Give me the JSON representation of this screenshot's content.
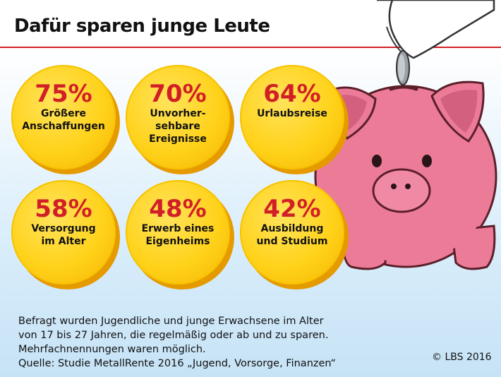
{
  "header": {
    "title": "Dafür sparen junge Leute"
  },
  "chart_data": {
    "type": "other",
    "categories": [
      "Größere Anschaffungen",
      "Unvorhersehbare Ereignisse",
      "Urlaubsreise",
      "Versorgung im Alter",
      "Erwerb eines Eigenheims",
      "Ausbildung und Studium"
    ],
    "values": [
      75,
      70,
      64,
      58,
      48,
      42
    ],
    "unit": "%"
  },
  "coins": [
    {
      "value": "75%",
      "label": "Größere\nAnschaffungen"
    },
    {
      "value": "70%",
      "label": "Unvorher-\nsehbare\nEreignisse"
    },
    {
      "value": "64%",
      "label": "Urlaubsreise"
    },
    {
      "value": "58%",
      "label": "Versorgung\nim Alter"
    },
    {
      "value": "48%",
      "label": "Erwerb eines\nEigenheims"
    },
    {
      "value": "42%",
      "label": "Ausbildung\nund Studium"
    }
  ],
  "footer": {
    "note": "Befragt wurden Jugendliche und junge Erwachsene im Alter\nvon 17 bis 27 Jahren, die regelmäßig oder ab und zu sparen.\nMehrfachnennungen waren möglich.\nQuelle: Studie MetallRente 2016 „Jugend, Vorsorge, Finanzen“",
    "copyright": "© LBS 2016"
  },
  "colors": {
    "accent": "#d21f27",
    "coin": "#ffd21a",
    "piggy": "#ec7b98"
  },
  "icons": [
    "piggy-bank-icon",
    "hand-icon",
    "coin-icon"
  ]
}
